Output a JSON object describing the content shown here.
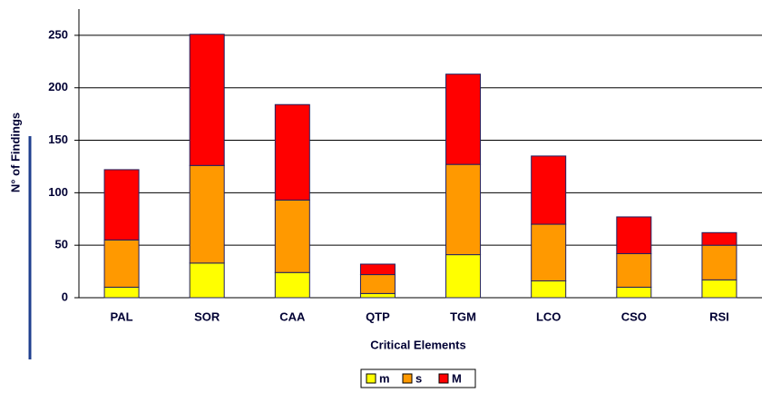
{
  "chart_data": {
    "type": "stacked_bar",
    "x_label": "Critical Elements",
    "y_label": "N° of Findings",
    "categories": [
      "PAL",
      "SOR",
      "CAA",
      "QTP",
      "TGM",
      "LCO",
      "CSO",
      "RSI"
    ],
    "series": [
      {
        "name": "m",
        "color": "#ffff00",
        "values": [
          10,
          33,
          24,
          4,
          41,
          16,
          10,
          17
        ]
      },
      {
        "name": "s",
        "color": "#ff9900",
        "values": [
          45,
          93,
          69,
          18,
          86,
          54,
          32,
          33
        ]
      },
      {
        "name": "M",
        "color": "#ff0000",
        "values": [
          67,
          125,
          91,
          10,
          86,
          65,
          35,
          12
        ]
      }
    ],
    "ylim": [
      0,
      275
    ],
    "yticks": [
      0,
      50,
      100,
      150,
      200,
      250
    ],
    "grid": true,
    "legend": "bottom"
  }
}
